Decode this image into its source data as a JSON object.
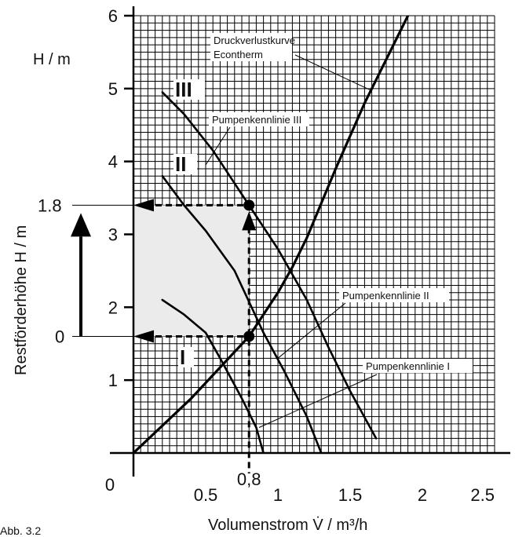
{
  "chart_data": {
    "type": "line",
    "title": "",
    "xlabel": "Volumenstrom V̇ / m³/h",
    "ylabel": "Restförderhöhe H / m",
    "y_unit_label": "H / m",
    "xlim": [
      0,
      2.5
    ],
    "ylim": [
      0,
      6
    ],
    "grid": true,
    "x_ticks": [
      "0",
      "0.5",
      "1",
      "1.5",
      "2",
      "2.5"
    ],
    "y_ticks": [
      "1",
      "2",
      "3",
      "4",
      "5",
      "6"
    ],
    "series": [
      {
        "name": "Druckverlustkurve Econtherm",
        "x": [
          0,
          0.4,
          0.8,
          1.0,
          1.1,
          1.2,
          1.4,
          1.6,
          1.9
        ],
        "y": [
          0,
          0.75,
          1.6,
          2.2,
          2.55,
          2.95,
          3.9,
          4.8,
          6.0
        ]
      },
      {
        "name": "Pumpenkennlinie III",
        "x": [
          0.2,
          0.35,
          0.55,
          0.8,
          1.0,
          1.2,
          1.35,
          1.5,
          1.68
        ],
        "y": [
          4.95,
          4.65,
          4.15,
          3.4,
          2.8,
          2.1,
          1.45,
          0.85,
          0.2
        ]
      },
      {
        "name": "Pumpenkennlinie II",
        "x": [
          0.2,
          0.35,
          0.5,
          0.7,
          0.9,
          1.05,
          1.2,
          1.3
        ],
        "y": [
          3.8,
          3.4,
          3.05,
          2.5,
          1.65,
          1.1,
          0.5,
          0.0
        ]
      },
      {
        "name": "Pumpenkennlinie I",
        "x": [
          0.2,
          0.35,
          0.5,
          0.6,
          0.75,
          0.85,
          0.9
        ],
        "y": [
          2.1,
          1.9,
          1.65,
          1.3,
          0.75,
          0.35,
          0.0
        ]
      }
    ],
    "operating_points": [
      {
        "x": 0.8,
        "y": 1.6,
        "label": "0"
      },
      {
        "x": 0.8,
        "y": 3.4,
        "label": "1.8"
      }
    ],
    "marker_x_label": "0,8",
    "curve_labels": [
      "III",
      "II",
      "I"
    ],
    "annotations": [
      {
        "text": "Druckverlustkurve",
        "line2": "Econtherm"
      },
      {
        "text": "Pumpenkennlinie III"
      },
      {
        "text": "Pumpenkennlinie II"
      },
      {
        "text": "Pumpenkennlinie I"
      }
    ]
  },
  "caption": "Abb. 3.2"
}
